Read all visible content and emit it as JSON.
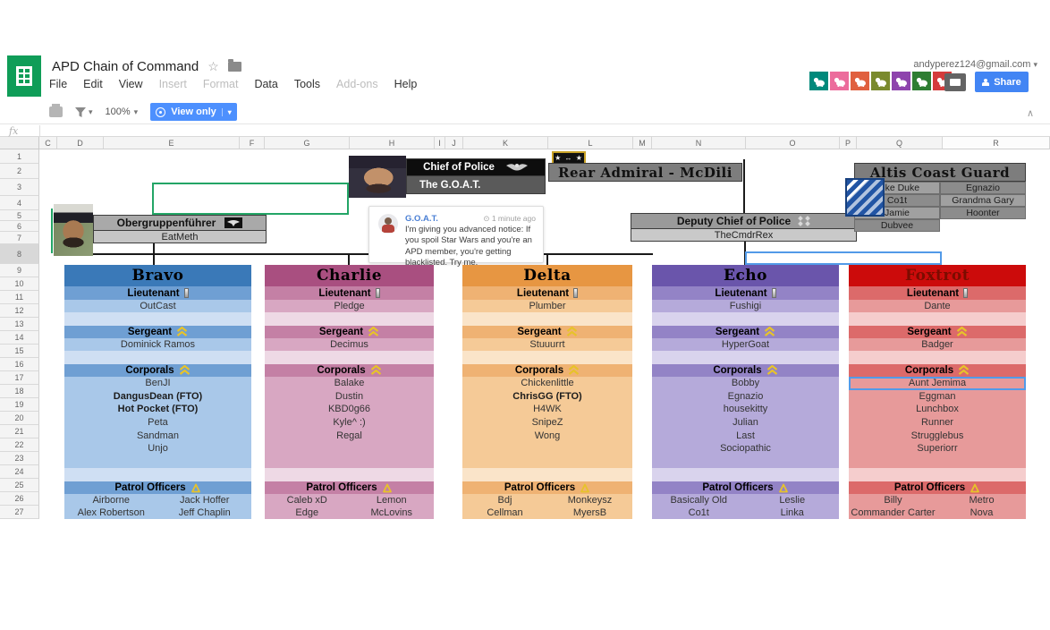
{
  "app": {
    "title": "APD Chain of Command",
    "menus": [
      {
        "label": "File",
        "enabled": true
      },
      {
        "label": "Edit",
        "enabled": true
      },
      {
        "label": "View",
        "enabled": true
      },
      {
        "label": "Insert",
        "enabled": false
      },
      {
        "label": "Format",
        "enabled": false
      },
      {
        "label": "Data",
        "enabled": true
      },
      {
        "label": "Tools",
        "enabled": true
      },
      {
        "label": "Add-ons",
        "enabled": false
      },
      {
        "label": "Help",
        "enabled": true
      }
    ],
    "toolbar": {
      "zoom_level": "100%",
      "view_mode_label": "View only"
    },
    "account_email": "andyperez124@gmail.com",
    "share_label": "Share",
    "formula_bar_label": "fx",
    "anonymous_avatars": [
      {
        "animal": "bull",
        "color": "#00897b"
      },
      {
        "animal": "pig",
        "color": "#ec6c9c"
      },
      {
        "animal": "camel",
        "color": "#e0603f"
      },
      {
        "animal": "goat",
        "color": "#7a8a2e"
      },
      {
        "animal": "snake",
        "color": "#8e44ad"
      },
      {
        "animal": "bird",
        "color": "#2e7d32"
      },
      {
        "animal": "dolphin",
        "color": "#d43b3b"
      }
    ]
  },
  "grid": {
    "columns": [
      "C",
      "D",
      "E",
      "F",
      "G",
      "H",
      "I",
      "J",
      "K",
      "L",
      "M",
      "N",
      "O",
      "P",
      "Q",
      "R"
    ],
    "row_count": 27,
    "highlighted_row": "8",
    "highlighted_column": "R",
    "selection_colors": {
      "own": "#529ae8",
      "other_user_green": "#23a566"
    }
  },
  "org": {
    "chief": {
      "title": "Chief of Police",
      "name": "The G.O.A.T."
    },
    "rear_admiral": {
      "title": "Rear Admiral - McDili",
      "badge_glyph": "★ ↔ ★"
    },
    "left_supervisor": {
      "title": "Obergruppenführer",
      "name": "EatMeth"
    },
    "deputy": {
      "title": "Deputy Chief of Police",
      "name": "TheCmdrRex"
    },
    "coast_guard": {
      "title": "Altis Coast Guard",
      "rows": [
        [
          "Luke Duke",
          "Egnazio"
        ],
        [
          "Co1t",
          "Grandma Gary"
        ],
        [
          "Jamie",
          "Hoonter"
        ],
        [
          "Dubvee",
          ""
        ]
      ]
    },
    "comment": {
      "author": "G.O.A.T.",
      "time": "1 minute ago",
      "text": "I'm giving you advanced notice: If you spoil Star Wars and you're an APD member, you're getting blacklisted. Try me."
    },
    "rank_labels": {
      "lieutenant": "Lieutenant",
      "sergeant": "Sergeant",
      "corporals": "Corporals",
      "patrol": "Patrol Officers"
    },
    "squads": [
      {
        "name": "Bravo",
        "colors": {
          "header": "#3a79b8",
          "band": "#6f9fd3",
          "light": "#a9c8e9",
          "pale": "#cfdff3",
          "title_text": "#000000"
        },
        "lieutenant": "OutCast",
        "sergeant": "Dominick Ramos",
        "corporals": [
          {
            "name": "BenJI"
          },
          {
            "name": "DangusDean (FTO)",
            "bold": true
          },
          {
            "name": "Hot Pocket (FTO)",
            "bold": true
          },
          {
            "name": "Peta"
          },
          {
            "name": "Sandman"
          },
          {
            "name": "Unjo"
          }
        ],
        "patrol": [
          [
            "Airborne",
            "Jack Hoffer"
          ],
          [
            "Alex Robertson",
            "Jeff Chaplin"
          ]
        ]
      },
      {
        "name": "Charlie",
        "colors": {
          "header": "#a94f80",
          "band": "#c480a5",
          "light": "#d8a7c2",
          "pale": "#eed9e5",
          "title_text": "#000000"
        },
        "lieutenant": "Pledge",
        "sergeant": "Decimus",
        "corporals": [
          {
            "name": "Balake"
          },
          {
            "name": "Dustin"
          },
          {
            "name": "KBD0g66"
          },
          {
            "name": "Kyle^ :)"
          },
          {
            "name": "Regal"
          }
        ],
        "patrol": [
          [
            "Caleb xD",
            "Lemon"
          ],
          [
            "Edge",
            "McLovins"
          ]
        ]
      },
      {
        "name": "Delta",
        "colors": {
          "header": "#e79642",
          "band": "#efb273",
          "light": "#f5ca97",
          "pale": "#fae4c9",
          "title_text": "#000000"
        },
        "lieutenant": "Plumber",
        "sergeant": "Stuuurrt",
        "corporals": [
          {
            "name": "Chickenlittle"
          },
          {
            "name": "ChrisGG (FTO)",
            "bold": true
          },
          {
            "name": "H4WK"
          },
          {
            "name": "SnipeZ"
          },
          {
            "name": "Wong"
          }
        ],
        "patrol": [
          [
            "Bdj",
            "Monkeysz"
          ],
          [
            "Cellman",
            "MyersB"
          ]
        ]
      },
      {
        "name": "Echo",
        "colors": {
          "header": "#6a55ab",
          "band": "#9383c6",
          "light": "#b5aada",
          "pale": "#d9d3ed",
          "title_text": "#000000"
        },
        "lieutenant": "Fushigi",
        "sergeant": "HyperGoat",
        "corporals": [
          {
            "name": "Bobby"
          },
          {
            "name": "Egnazio"
          },
          {
            "name": "housekitty"
          },
          {
            "name": "Julian"
          },
          {
            "name": "Last"
          },
          {
            "name": "Sociopathic"
          }
        ],
        "patrol": [
          [
            "Basically Old",
            "Leslie"
          ],
          [
            "Co1t",
            "Linka"
          ]
        ]
      },
      {
        "name": "Foxtrot",
        "colors": {
          "header": "#cc0b0b",
          "band": "#dc6a6a",
          "light": "#e79a9a",
          "pale": "#f5cdcd",
          "title_text": "#7b0c00"
        },
        "lieutenant": "Dante",
        "sergeant": "Badger",
        "corporals": [
          {
            "name": "Aunt Jemima",
            "selected": true
          },
          {
            "name": "Eggman"
          },
          {
            "name": "Lunchbox"
          },
          {
            "name": "Runner"
          },
          {
            "name": "Strugglebus"
          },
          {
            "name": "Superiorr"
          }
        ],
        "patrol": [
          [
            "Billy",
            "Metro"
          ],
          [
            "Commander Carter",
            "Nova"
          ]
        ]
      }
    ]
  }
}
